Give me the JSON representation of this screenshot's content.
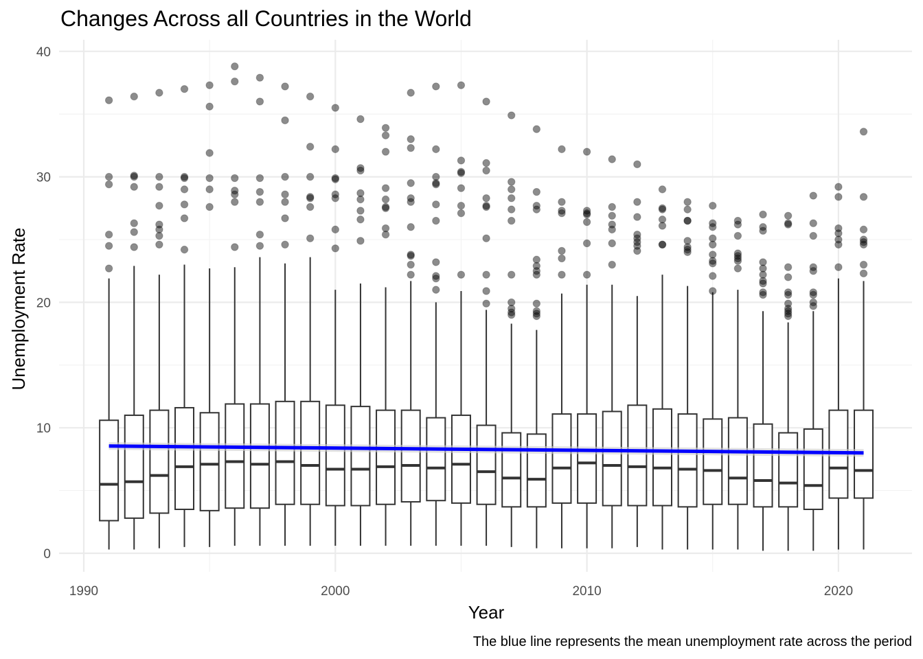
{
  "chart_data": {
    "type": "boxplot",
    "title": "Changes Across all Countries in the World",
    "xlabel": "Year",
    "ylabel": "Unemployment Rate",
    "caption": "The blue line represents the mean unemployment rate across the period",
    "xlim": [
      1990,
      2022
    ],
    "ylim": [
      0,
      40
    ],
    "x_ticks": [
      1990,
      2000,
      2010,
      2020
    ],
    "y_ticks": [
      0,
      10,
      20,
      30,
      40
    ],
    "grid": true,
    "legend": "none",
    "colors": {
      "box_outline": "#333333",
      "outlier": "#000000",
      "trend_line": "#0000ff",
      "grid": "#ebebeb"
    },
    "boxes": [
      {
        "year": 1991,
        "lower": 0.3,
        "q1": 2.6,
        "median": 5.5,
        "q3": 10.6,
        "upper": 21.9,
        "outliers": [
          22.7,
          24.5,
          25.4,
          29.4,
          30.0,
          36.1
        ]
      },
      {
        "year": 1992,
        "lower": 0.3,
        "q1": 2.8,
        "median": 5.7,
        "q3": 11.0,
        "upper": 22.9,
        "outliers": [
          24.4,
          25.6,
          26.3,
          29.2,
          30.0,
          30.1,
          36.4
        ]
      },
      {
        "year": 1993,
        "lower": 0.4,
        "q1": 3.2,
        "median": 6.2,
        "q3": 11.4,
        "upper": 22.2,
        "outliers": [
          24.6,
          25.3,
          25.8,
          26.2,
          27.7,
          29.2,
          30.0,
          36.7
        ]
      },
      {
        "year": 1994,
        "lower": 0.5,
        "q1": 3.5,
        "median": 6.9,
        "q3": 11.6,
        "upper": 23.0,
        "outliers": [
          24.2,
          26.7,
          27.8,
          29.0,
          29.9,
          30.0,
          37.0
        ]
      },
      {
        "year": 1995,
        "lower": 0.5,
        "q1": 3.4,
        "median": 7.1,
        "q3": 11.2,
        "upper": 22.7,
        "outliers": [
          27.6,
          29.0,
          29.9,
          31.9,
          35.6,
          37.3
        ]
      },
      {
        "year": 1996,
        "lower": 0.6,
        "q1": 3.6,
        "median": 7.3,
        "q3": 11.9,
        "upper": 22.8,
        "outliers": [
          24.4,
          28.0,
          28.6,
          28.9,
          29.9,
          37.6,
          38.8
        ]
      },
      {
        "year": 1997,
        "lower": 0.6,
        "q1": 3.6,
        "median": 7.1,
        "q3": 11.9,
        "upper": 23.6,
        "outliers": [
          24.5,
          25.4,
          28.0,
          28.8,
          29.9,
          36.0,
          37.9
        ]
      },
      {
        "year": 1998,
        "lower": 0.6,
        "q1": 3.9,
        "median": 7.3,
        "q3": 12.1,
        "upper": 23.1,
        "outliers": [
          24.6,
          26.7,
          28.0,
          28.6,
          30.0,
          34.5,
          37.2
        ]
      },
      {
        "year": 1999,
        "lower": 0.6,
        "q1": 3.9,
        "median": 7.0,
        "q3": 12.1,
        "upper": 23.6,
        "outliers": [
          25.1,
          27.6,
          28.3,
          28.4,
          30.0,
          32.4,
          36.4
        ]
      },
      {
        "year": 2000,
        "lower": 0.6,
        "q1": 3.8,
        "median": 6.7,
        "q3": 11.8,
        "upper": 21.0,
        "outliers": [
          24.3,
          25.8,
          28.3,
          28.6,
          29.8,
          29.9,
          32.2,
          35.5
        ]
      },
      {
        "year": 2001,
        "lower": 0.6,
        "q1": 3.8,
        "median": 6.7,
        "q3": 11.7,
        "upper": 21.5,
        "outliers": [
          24.9,
          26.6,
          27.3,
          28.2,
          28.7,
          30.5,
          30.7,
          34.6
        ]
      },
      {
        "year": 2002,
        "lower": 0.6,
        "q1": 3.9,
        "median": 6.9,
        "q3": 11.4,
        "upper": 21.2,
        "outliers": [
          25.4,
          25.9,
          27.5,
          27.6,
          28.2,
          29.1,
          32.0,
          33.3,
          33.9
        ]
      },
      {
        "year": 2003,
        "lower": 0.6,
        "q1": 4.1,
        "median": 7.0,
        "q3": 11.4,
        "upper": 21.7,
        "outliers": [
          22.2,
          23.0,
          23.7,
          23.8,
          26.0,
          28.0,
          28.3,
          29.5,
          32.3,
          33.0,
          36.7
        ]
      },
      {
        "year": 2004,
        "lower": 0.6,
        "q1": 4.2,
        "median": 6.8,
        "q3": 10.8,
        "upper": 20.0,
        "outliers": [
          21.0,
          21.9,
          22.1,
          23.2,
          26.5,
          27.8,
          29.4,
          29.5,
          30.0,
          32.2,
          37.2
        ]
      },
      {
        "year": 2005,
        "lower": 0.6,
        "q1": 4.0,
        "median": 7.1,
        "q3": 11.0,
        "upper": 20.9,
        "outliers": [
          22.2,
          27.1,
          27.7,
          29.1,
          30.3,
          30.4,
          31.3,
          37.3
        ]
      },
      {
        "year": 2006,
        "lower": 0.6,
        "q1": 3.9,
        "median": 6.5,
        "q3": 10.2,
        "upper": 19.4,
        "outliers": [
          19.9,
          20.9,
          22.2,
          25.1,
          27.6,
          27.7,
          28.3,
          30.5,
          31.1,
          36.0
        ]
      },
      {
        "year": 2007,
        "lower": 0.5,
        "q1": 3.7,
        "median": 6.0,
        "q3": 9.6,
        "upper": 18.3,
        "outliers": [
          19.0,
          19.2,
          19.5,
          20.0,
          22.2,
          26.5,
          27.4,
          28.3,
          29.0,
          29.6,
          34.9
        ]
      },
      {
        "year": 2008,
        "lower": 0.4,
        "q1": 3.7,
        "median": 5.9,
        "q3": 9.5,
        "upper": 17.8,
        "outliers": [
          18.9,
          19.1,
          19.3,
          19.9,
          22.2,
          22.5,
          22.9,
          23.4,
          27.4,
          27.7,
          28.8,
          33.8
        ]
      },
      {
        "year": 2009,
        "lower": 0.4,
        "q1": 4.0,
        "median": 6.8,
        "q3": 11.1,
        "upper": 20.7,
        "outliers": [
          22.2,
          23.5,
          24.1,
          27.1,
          27.3,
          28.0,
          32.2
        ]
      },
      {
        "year": 2010,
        "lower": 0.4,
        "q1": 4.0,
        "median": 7.2,
        "q3": 11.1,
        "upper": 21.4,
        "outliers": [
          22.2,
          24.7,
          26.4,
          27.0,
          27.1,
          27.3,
          32.0
        ]
      },
      {
        "year": 2011,
        "lower": 0.4,
        "q1": 3.8,
        "median": 7.0,
        "q3": 11.3,
        "upper": 21.4,
        "outliers": [
          23.0,
          24.7,
          25.8,
          26.2,
          26.9,
          27.6,
          31.4
        ]
      },
      {
        "year": 2012,
        "lower": 0.5,
        "q1": 3.8,
        "median": 6.9,
        "q3": 11.8,
        "upper": 20.5,
        "outliers": [
          24.1,
          24.5,
          24.8,
          25.1,
          25.4,
          26.8,
          28.0,
          31.0
        ]
      },
      {
        "year": 2013,
        "lower": 0.3,
        "q1": 3.8,
        "median": 6.8,
        "q3": 11.5,
        "upper": 22.2,
        "outliers": [
          24.6,
          24.6,
          26.1,
          26.6,
          27.4,
          27.5,
          29.0
        ]
      },
      {
        "year": 2014,
        "lower": 0.3,
        "q1": 3.7,
        "median": 6.7,
        "q3": 11.1,
        "upper": 21.3,
        "outliers": [
          24.0,
          24.2,
          24.4,
          24.9,
          26.5,
          26.5,
          27.4,
          28.0
        ]
      },
      {
        "year": 2015,
        "lower": 0.3,
        "q1": 3.9,
        "median": 6.6,
        "q3": 10.7,
        "upper": 20.8,
        "outliers": [
          20.9,
          22.1,
          23.1,
          23.3,
          23.8,
          24.6,
          25.1,
          26.0,
          26.3,
          27.7
        ]
      },
      {
        "year": 2016,
        "lower": 0.3,
        "q1": 3.9,
        "median": 6.0,
        "q3": 10.8,
        "upper": 21.0,
        "outliers": [
          22.7,
          23.3,
          23.5,
          23.7,
          23.9,
          25.3,
          26.2,
          26.5
        ]
      },
      {
        "year": 2017,
        "lower": 0.2,
        "q1": 3.7,
        "median": 5.8,
        "q3": 10.3,
        "upper": 19.3,
        "outliers": [
          20.6,
          20.8,
          21.5,
          21.7,
          22.2,
          22.7,
          23.2,
          25.7,
          26.0,
          27.0
        ]
      },
      {
        "year": 2018,
        "lower": 0.2,
        "q1": 3.7,
        "median": 5.6,
        "q3": 9.6,
        "upper": 18.4,
        "outliers": [
          18.9,
          19.1,
          19.3,
          19.5,
          19.9,
          20.6,
          20.8,
          22.0,
          22.8,
          26.2,
          26.3,
          26.9
        ]
      },
      {
        "year": 2019,
        "lower": 0.2,
        "q1": 3.5,
        "median": 5.4,
        "q3": 9.9,
        "upper": 19.3,
        "outliers": [
          19.7,
          20.0,
          20.6,
          20.8,
          22.5,
          22.8,
          25.3,
          26.3,
          28.5
        ]
      },
      {
        "year": 2020,
        "lower": 0.3,
        "q1": 4.4,
        "median": 6.8,
        "q3": 11.4,
        "upper": 21.9,
        "outliers": [
          22.8,
          24.6,
          25.0,
          25.5,
          25.9,
          28.4,
          29.2
        ]
      },
      {
        "year": 2021,
        "lower": 0.3,
        "q1": 4.4,
        "median": 6.6,
        "q3": 11.4,
        "upper": 21.7,
        "outliers": [
          22.3,
          23.0,
          24.6,
          24.8,
          25.0,
          25.8,
          28.4,
          33.6
        ]
      }
    ],
    "trend_line": {
      "x": [
        1991,
        2021
      ],
      "y": [
        8.55,
        8.0
      ]
    }
  }
}
